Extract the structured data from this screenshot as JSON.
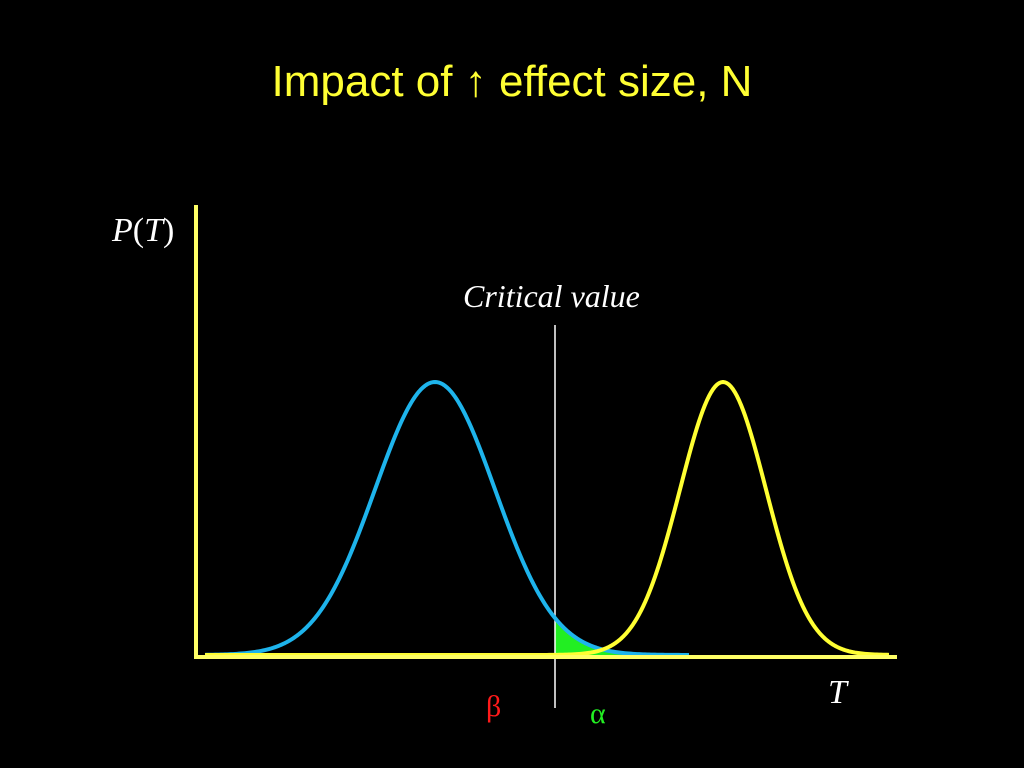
{
  "title": {
    "prefix": "Impact of ",
    "arrow": "↑",
    "suffix": " effect size, N"
  },
  "y_axis_label": {
    "italic_p": "P",
    "open": "(",
    "italic_t": "T",
    "close": ")"
  },
  "x_axis_label": "T",
  "critical_value_label": "Critical value",
  "beta_label": "β",
  "alpha_label": "α",
  "colors": {
    "background": "#000000",
    "title": "#FFFF33",
    "axis": "#FFFF66",
    "null_curve": "#1EB4EC",
    "alt_curve": "#FFFF33",
    "beta_fill": "#FF1A1A",
    "alpha_fill": "#22EE22",
    "critical_line": "#FFFFFF"
  },
  "chart_data": {
    "type": "line",
    "series": [
      {
        "distribution": "normal",
        "mean": 435,
        "sd": 60,
        "color": "#1EB4EC"
      },
      {
        "distribution": "normal",
        "mean": 723,
        "sd": 43,
        "color": "#FFFF33"
      }
    ],
    "critical_value": 555,
    "shaded_regions": [
      "beta",
      "alpha"
    ]
  }
}
